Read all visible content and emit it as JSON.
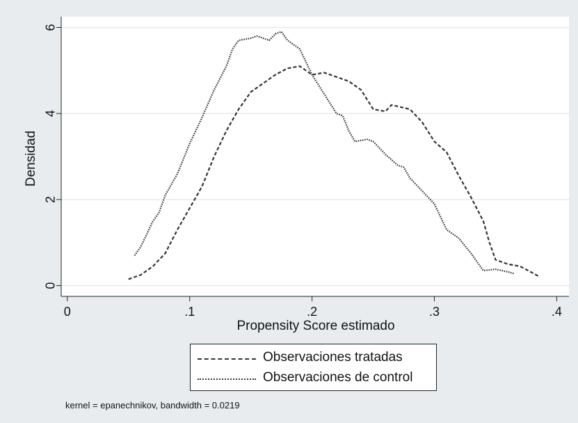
{
  "chart_data": {
    "type": "line",
    "title": "",
    "xlabel": "Propensity Score estimado",
    "ylabel": "Densidad",
    "xlim": [
      -0.005,
      0.41
    ],
    "ylim": [
      -0.25,
      6.25
    ],
    "x_ticks": [
      0,
      0.1,
      0.2,
      0.3,
      0.4
    ],
    "x_tick_labels": [
      "0",
      ".1",
      ".2",
      ".3",
      ".4"
    ],
    "y_ticks": [
      0,
      2,
      4,
      6
    ],
    "y_tick_labels": [
      "0",
      "2",
      "4",
      "6"
    ],
    "grid": "horizontal",
    "legend_position": "bottom",
    "series": [
      {
        "name": "Observaciones tratadas",
        "style": "dashed",
        "points": [
          [
            0.05,
            0.15
          ],
          [
            0.06,
            0.25
          ],
          [
            0.07,
            0.45
          ],
          [
            0.08,
            0.75
          ],
          [
            0.09,
            1.3
          ],
          [
            0.1,
            1.8
          ],
          [
            0.11,
            2.3
          ],
          [
            0.12,
            3.0
          ],
          [
            0.13,
            3.6
          ],
          [
            0.14,
            4.1
          ],
          [
            0.15,
            4.5
          ],
          [
            0.16,
            4.7
          ],
          [
            0.17,
            4.9
          ],
          [
            0.18,
            5.05
          ],
          [
            0.19,
            5.1
          ],
          [
            0.2,
            4.9
          ],
          [
            0.21,
            4.95
          ],
          [
            0.22,
            4.85
          ],
          [
            0.23,
            4.75
          ],
          [
            0.24,
            4.55
          ],
          [
            0.25,
            4.1
          ],
          [
            0.26,
            4.05
          ],
          [
            0.265,
            4.2
          ],
          [
            0.28,
            4.1
          ],
          [
            0.29,
            3.8
          ],
          [
            0.3,
            3.35
          ],
          [
            0.31,
            3.1
          ],
          [
            0.32,
            2.55
          ],
          [
            0.33,
            2.05
          ],
          [
            0.34,
            1.5
          ],
          [
            0.345,
            1.0
          ],
          [
            0.35,
            0.6
          ],
          [
            0.36,
            0.5
          ],
          [
            0.37,
            0.45
          ],
          [
            0.38,
            0.3
          ],
          [
            0.385,
            0.22
          ]
        ]
      },
      {
        "name": "Observaciones de control",
        "style": "dotted",
        "points": [
          [
            0.055,
            0.7
          ],
          [
            0.06,
            0.9
          ],
          [
            0.065,
            1.2
          ],
          [
            0.07,
            1.5
          ],
          [
            0.075,
            1.7
          ],
          [
            0.08,
            2.1
          ],
          [
            0.09,
            2.6
          ],
          [
            0.1,
            3.3
          ],
          [
            0.11,
            3.9
          ],
          [
            0.12,
            4.55
          ],
          [
            0.13,
            5.1
          ],
          [
            0.135,
            5.5
          ],
          [
            0.14,
            5.7
          ],
          [
            0.15,
            5.75
          ],
          [
            0.155,
            5.8
          ],
          [
            0.16,
            5.75
          ],
          [
            0.165,
            5.7
          ],
          [
            0.17,
            5.85
          ],
          [
            0.175,
            5.9
          ],
          [
            0.18,
            5.7
          ],
          [
            0.185,
            5.6
          ],
          [
            0.19,
            5.5
          ],
          [
            0.2,
            4.9
          ],
          [
            0.21,
            4.45
          ],
          [
            0.22,
            4.0
          ],
          [
            0.225,
            3.95
          ],
          [
            0.23,
            3.6
          ],
          [
            0.235,
            3.35
          ],
          [
            0.245,
            3.4
          ],
          [
            0.25,
            3.35
          ],
          [
            0.26,
            3.05
          ],
          [
            0.27,
            2.8
          ],
          [
            0.275,
            2.75
          ],
          [
            0.28,
            2.5
          ],
          [
            0.29,
            2.2
          ],
          [
            0.3,
            1.9
          ],
          [
            0.31,
            1.3
          ],
          [
            0.32,
            1.1
          ],
          [
            0.33,
            0.75
          ],
          [
            0.34,
            0.35
          ],
          [
            0.35,
            0.38
          ],
          [
            0.36,
            0.32
          ],
          [
            0.365,
            0.28
          ]
        ]
      }
    ],
    "note": "kernel = epanechnikov, bandwidth = 0.0219"
  }
}
